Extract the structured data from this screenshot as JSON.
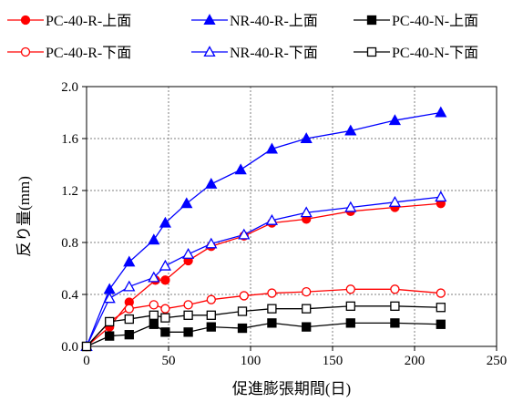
{
  "chart_data": {
    "type": "line",
    "title": "",
    "xlabel": "促進膨張期間(日)",
    "ylabel": "反り量(mm)",
    "xlim": [
      0,
      250
    ],
    "ylim": [
      0,
      2.0
    ],
    "xticks": [
      0,
      50,
      100,
      150,
      200,
      250
    ],
    "yticks": [
      0.0,
      0.4,
      0.8,
      1.2,
      1.6,
      2.0
    ],
    "ytick_labels": [
      "0.0",
      "0.4",
      "0.8",
      "1.2",
      "1.6",
      "2.0"
    ],
    "grid": true,
    "legend_position": "top",
    "series": [
      {
        "name": "PC-40-R-上面",
        "color": "#ff0000",
        "marker": "circle",
        "filled": true,
        "x": [
          0,
          14,
          26,
          42,
          48,
          62,
          76,
          96,
          113,
          134,
          161,
          188,
          216
        ],
        "y": [
          0,
          0.15,
          0.34,
          0.51,
          0.51,
          0.66,
          0.77,
          0.85,
          0.95,
          0.98,
          1.04,
          1.07,
          1.1
        ]
      },
      {
        "name": "NR-40-R-上面",
        "color": "#0000ff",
        "marker": "triangle",
        "filled": true,
        "x": [
          0,
          14,
          26,
          41,
          48,
          61,
          76,
          94,
          113,
          134,
          161,
          188,
          216
        ],
        "y": [
          0,
          0.44,
          0.65,
          0.82,
          0.95,
          1.1,
          1.25,
          1.36,
          1.52,
          1.6,
          1.66,
          1.74,
          1.8
        ]
      },
      {
        "name": "PC-40-N-上面",
        "color": "#000000",
        "marker": "square",
        "filled": true,
        "x": [
          0,
          14,
          26,
          41,
          48,
          62,
          76,
          95,
          113,
          134,
          161,
          188,
          216
        ],
        "y": [
          0,
          0.08,
          0.09,
          0.17,
          0.11,
          0.11,
          0.15,
          0.14,
          0.18,
          0.15,
          0.18,
          0.18,
          0.17
        ]
      },
      {
        "name": "PC-40-R-下面",
        "color": "#ff0000",
        "marker": "circle",
        "filled": false,
        "x": [
          0,
          14,
          26,
          41,
          48,
          62,
          76,
          96,
          113,
          134,
          161,
          188,
          216
        ],
        "y": [
          0,
          0.19,
          0.29,
          0.32,
          0.29,
          0.32,
          0.36,
          0.39,
          0.41,
          0.42,
          0.44,
          0.44,
          0.41
        ]
      },
      {
        "name": "NR-40-R-下面",
        "color": "#0000ff",
        "marker": "triangle",
        "filled": false,
        "x": [
          0,
          14,
          26,
          41,
          48,
          62,
          76,
          96,
          113,
          134,
          161,
          188,
          216
        ],
        "y": [
          0,
          0.37,
          0.46,
          0.53,
          0.62,
          0.71,
          0.79,
          0.86,
          0.97,
          1.03,
          1.07,
          1.11,
          1.15
        ]
      },
      {
        "name": "PC-40-N-下面",
        "color": "#000000",
        "marker": "square",
        "filled": false,
        "x": [
          0,
          14,
          26,
          41,
          48,
          62,
          76,
          95,
          113,
          134,
          161,
          188,
          216
        ],
        "y": [
          0,
          0.19,
          0.21,
          0.24,
          0.22,
          0.24,
          0.24,
          0.27,
          0.29,
          0.29,
          0.31,
          0.31,
          0.3
        ]
      }
    ]
  }
}
